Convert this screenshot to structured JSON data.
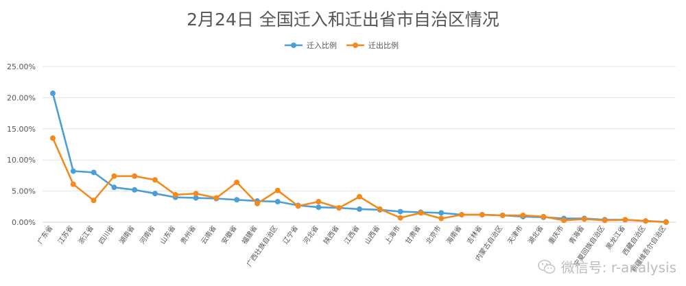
{
  "chart_data": {
    "type": "line",
    "title": "2月24日 全国迁入和迁出省市自治区情况",
    "categories": [
      "广东省",
      "江苏省",
      "浙江省",
      "四川省",
      "湖南省",
      "河南省",
      "山东省",
      "贵州省",
      "云南省",
      "安徽省",
      "福建省",
      "广西壮族自治区",
      "辽宁省",
      "河北省",
      "陕西省",
      "江西省",
      "山西省",
      "上海市",
      "甘肃省",
      "北京市",
      "海南省",
      "吉林省",
      "内蒙古自治区",
      "天津市",
      "湖北省",
      "重庆市",
      "青海省",
      "宁夏回族自治区",
      "黑龙江省",
      "西藏自治区",
      "新疆维吾尔自治区"
    ],
    "series": [
      {
        "name": "迁入比例",
        "color": "#4a9fd8",
        "values": [
          20.7,
          8.2,
          8.0,
          5.6,
          5.2,
          4.6,
          4.0,
          3.9,
          3.8,
          3.6,
          3.4,
          3.3,
          2.7,
          2.4,
          2.3,
          2.1,
          2.0,
          1.7,
          1.6,
          1.5,
          1.2,
          1.2,
          1.1,
          0.9,
          0.8,
          0.6,
          0.6,
          0.4,
          0.4,
          0.2,
          0.05
        ]
      },
      {
        "name": "迁出比例",
        "color": "#f28a1e",
        "values": [
          13.5,
          6.1,
          3.5,
          7.4,
          7.4,
          6.8,
          4.4,
          4.6,
          3.9,
          6.4,
          3.0,
          5.1,
          2.6,
          3.3,
          2.3,
          4.1,
          2.1,
          0.7,
          1.5,
          0.6,
          1.2,
          1.2,
          1.1,
          1.1,
          0.9,
          0.3,
          0.5,
          0.3,
          0.4,
          0.2,
          0.0
        ]
      }
    ],
    "y_ticks": [
      "25.00%",
      "20.00%",
      "15.00%",
      "10.00%",
      "5.00%",
      "0.00%"
    ],
    "ylim": [
      0,
      25
    ],
    "grid": true,
    "legend_position": "top-center"
  },
  "watermark": {
    "text": "微信号: r-analysis"
  }
}
